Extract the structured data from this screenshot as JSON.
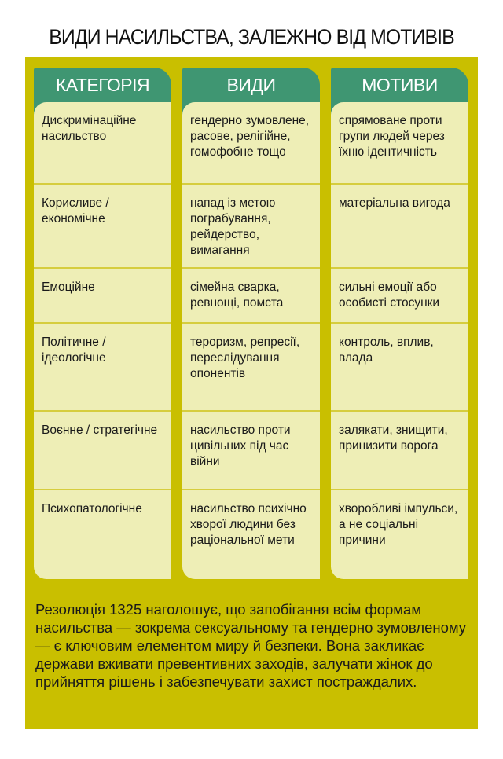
{
  "title": "ВИДИ НАСИЛЬСТВА, ЗАЛЕЖНО ВІД МОТИВІВ",
  "columns": [
    "КАТЕГОРІЯ",
    "ВИДИ",
    "МОТИВИ"
  ],
  "rows": [
    [
      "Дискримінаційне насильство",
      "гендерно зумовлене, расове, релігійне, гомофобне тощо",
      "спрямоване проти групи людей через їхню ідентичність"
    ],
    [
      "Корисливе / економічне",
      "напад із метою пограбування, рейдерство, вимагання",
      "матеріальна вигода"
    ],
    [
      "Емоційне",
      "сімейна сварка, ревнощі, помста",
      "сильні емоції або особисті стосунки"
    ],
    [
      "Політичне / ідеологічне",
      "тероризм, репресії, переслідування опонентів",
      "контроль, вплив, влада"
    ],
    [
      "Воєнне / стратегічне",
      "насильство проти цивільних під час війни",
      "залякати, знищити, принизити ворога"
    ],
    [
      "Психопатологічне",
      "насильство психічно хворої людини без раціональної мети",
      "хворобливі імпульси, а не соціальні причини"
    ]
  ],
  "footer": "Резолюція 1325 наголошує, що запобігання всім формам насильства — зокрема сексуальному та гендерно зумовленому — є ключовим елементом миру й безпеки. Вона закликає держави вживати превентивних заходів, залучати жінок до прийняття рішень і забезпечувати захист постраждалих.",
  "colors": {
    "panel": "#c9bf00",
    "header": "#3f9672",
    "cell": "#eeeeb6"
  }
}
